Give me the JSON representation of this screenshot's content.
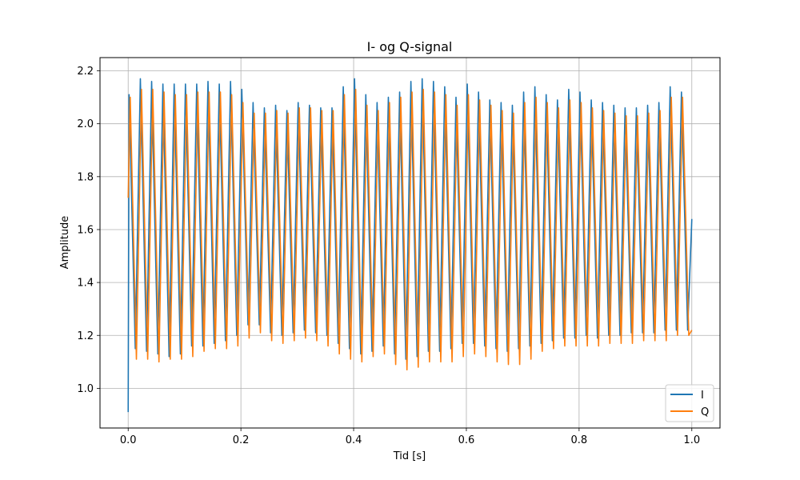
{
  "chart_data": {
    "type": "line",
    "title": "I- og Q-signal",
    "xlabel": "Tid [s]",
    "ylabel": "Amplitude",
    "xlim": [
      -0.05,
      1.05
    ],
    "ylim": [
      0.85,
      2.25
    ],
    "xticks": [
      0.0,
      0.2,
      0.4,
      0.6,
      0.8,
      1.0
    ],
    "xtick_labels": [
      "0.0",
      "0.2",
      "0.4",
      "0.6",
      "0.8",
      "1.0"
    ],
    "yticks": [
      1.0,
      1.2,
      1.4,
      1.6,
      1.8,
      2.0,
      2.2
    ],
    "ytick_labels": [
      "1.0",
      "1.2",
      "1.4",
      "1.6",
      "1.8",
      "2.0",
      "2.2"
    ],
    "grid": true,
    "legend_position": "lower-right",
    "oscillation_cycles": 50,
    "series": [
      {
        "name": "I",
        "color": "#1f77b4",
        "start_value": 0.91,
        "end_value": 1.64,
        "peaks": [
          2.11,
          2.17,
          2.16,
          2.15,
          2.15,
          2.15,
          2.15,
          2.16,
          2.15,
          2.16,
          2.13,
          2.08,
          2.06,
          2.07,
          2.05,
          2.08,
          2.07,
          2.06,
          2.06,
          2.14,
          2.17,
          2.11,
          2.08,
          2.1,
          2.12,
          2.16,
          2.17,
          2.16,
          2.14,
          2.1,
          2.15,
          2.12,
          2.09,
          2.08,
          2.07,
          2.12,
          2.14,
          2.11,
          2.09,
          2.13,
          2.12,
          2.09,
          2.08,
          2.07,
          2.06,
          2.06,
          2.07,
          2.08,
          2.14,
          2.12
        ],
        "troughs": [
          1.15,
          1.14,
          1.13,
          1.12,
          1.13,
          1.16,
          1.16,
          1.17,
          1.18,
          1.2,
          1.24,
          1.24,
          1.21,
          1.2,
          1.21,
          1.22,
          1.21,
          1.2,
          1.17,
          1.15,
          1.13,
          1.14,
          1.16,
          1.13,
          1.11,
          1.12,
          1.14,
          1.14,
          1.15,
          1.17,
          1.17,
          1.16,
          1.15,
          1.14,
          1.15,
          1.16,
          1.17,
          1.18,
          1.19,
          1.19,
          1.2,
          1.19,
          1.2,
          1.2,
          1.21,
          1.21,
          1.21,
          1.22,
          1.22,
          1.22
        ]
      },
      {
        "name": "Q",
        "color": "#ff7f0e",
        "start_value": 1.72,
        "end_value": 1.22,
        "peaks": [
          2.1,
          2.13,
          2.13,
          2.12,
          2.11,
          2.11,
          2.12,
          2.12,
          2.12,
          2.11,
          2.08,
          2.04,
          2.04,
          2.05,
          2.04,
          2.06,
          2.06,
          2.05,
          2.05,
          2.11,
          2.13,
          2.07,
          2.05,
          2.08,
          2.1,
          2.12,
          2.13,
          2.12,
          2.11,
          2.07,
          2.11,
          2.09,
          2.07,
          2.05,
          2.04,
          2.08,
          2.1,
          2.08,
          2.06,
          2.09,
          2.08,
          2.06,
          2.05,
          2.04,
          2.03,
          2.03,
          2.04,
          2.05,
          2.1,
          2.1
        ],
        "troughs": [
          1.11,
          1.11,
          1.1,
          1.11,
          1.11,
          1.12,
          1.14,
          1.15,
          1.15,
          1.16,
          1.19,
          1.21,
          1.18,
          1.17,
          1.18,
          1.19,
          1.18,
          1.16,
          1.13,
          1.11,
          1.1,
          1.12,
          1.13,
          1.09,
          1.07,
          1.08,
          1.1,
          1.1,
          1.1,
          1.12,
          1.13,
          1.12,
          1.1,
          1.09,
          1.09,
          1.11,
          1.14,
          1.15,
          1.16,
          1.16,
          1.16,
          1.16,
          1.17,
          1.17,
          1.17,
          1.18,
          1.18,
          1.18,
          1.2,
          1.2
        ]
      }
    ]
  }
}
